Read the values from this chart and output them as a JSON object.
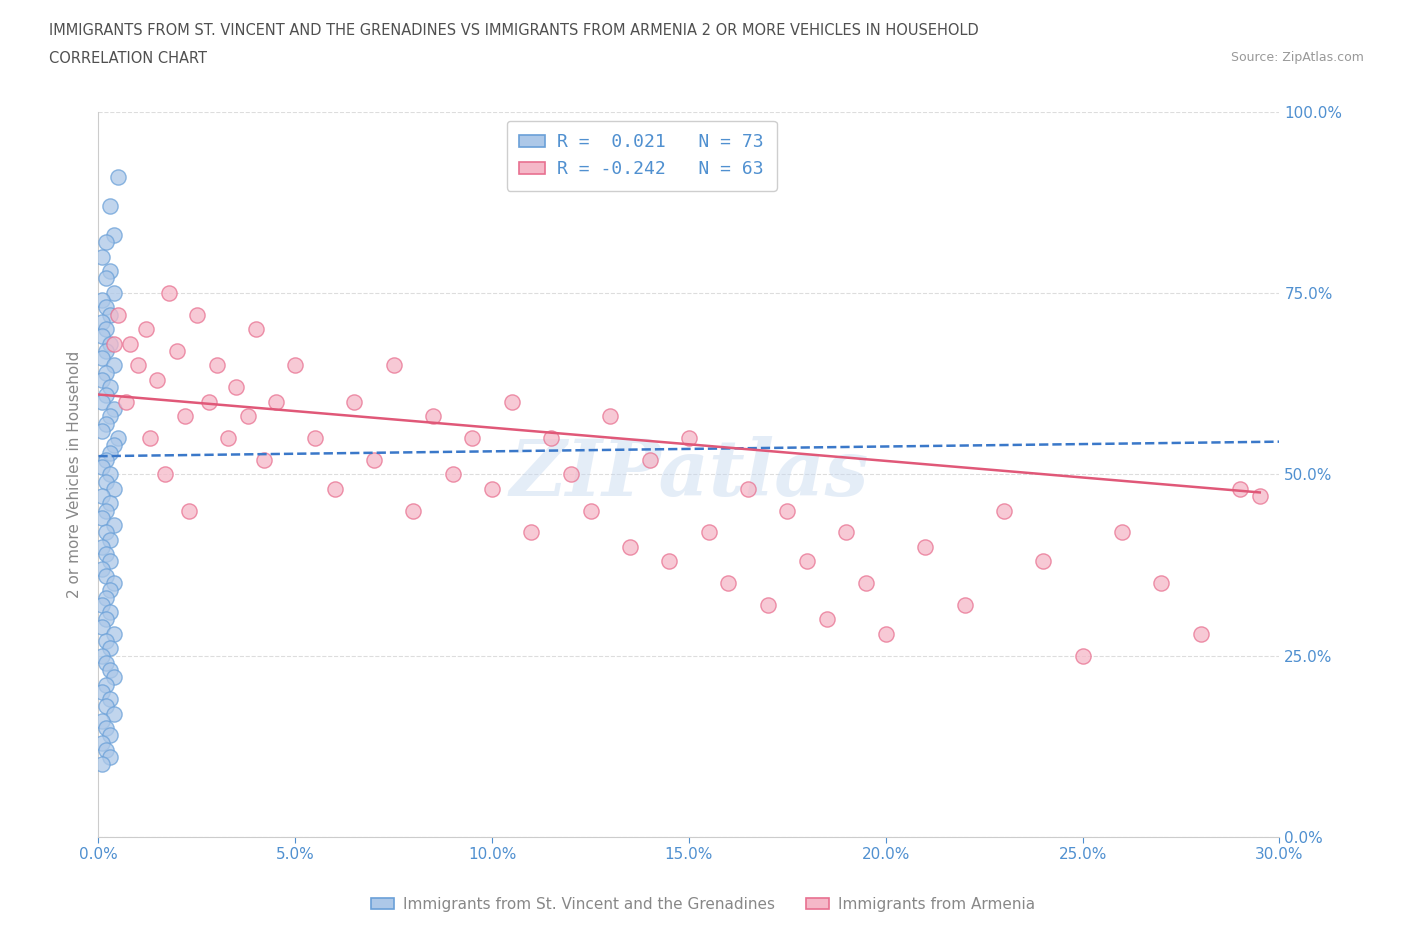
{
  "title_line1": "IMMIGRANTS FROM ST. VINCENT AND THE GRENADINES VS IMMIGRANTS FROM ARMENIA 2 OR MORE VEHICLES IN HOUSEHOLD",
  "title_line2": "CORRELATION CHART",
  "source_text": "Source: ZipAtlas.com",
  "ylabel": "2 or more Vehicles in Household",
  "xlim": [
    0.0,
    0.3
  ],
  "ylim": [
    0.0,
    1.0
  ],
  "xtick_labels": [
    "0.0%",
    "5.0%",
    "10.0%",
    "15.0%",
    "20.0%",
    "25.0%",
    "30.0%"
  ],
  "xtick_values": [
    0.0,
    0.05,
    0.1,
    0.15,
    0.2,
    0.25,
    0.3
  ],
  "ytick_labels": [
    "0.0%",
    "25.0%",
    "50.0%",
    "75.0%",
    "100.0%"
  ],
  "ytick_values": [
    0.0,
    0.25,
    0.5,
    0.75,
    1.0
  ],
  "blue_color": "#adc8e8",
  "pink_color": "#f5b8c8",
  "blue_edge_color": "#6aa0d8",
  "pink_edge_color": "#e87090",
  "blue_line_color": "#3a78c9",
  "pink_line_color": "#e05878",
  "legend_text_1": "R =  0.021   N = 73",
  "legend_text_2": "R = -0.242   N = 63",
  "legend_label_blue": "Immigrants from St. Vincent and the Grenadines",
  "legend_label_pink": "Immigrants from Armenia",
  "watermark": "ZIPatlas",
  "blue_scatter_x": [
    0.005,
    0.003,
    0.004,
    0.002,
    0.001,
    0.003,
    0.002,
    0.004,
    0.001,
    0.002,
    0.003,
    0.001,
    0.002,
    0.001,
    0.003,
    0.002,
    0.001,
    0.004,
    0.002,
    0.001,
    0.003,
    0.002,
    0.001,
    0.004,
    0.003,
    0.002,
    0.001,
    0.005,
    0.004,
    0.003,
    0.002,
    0.001,
    0.003,
    0.002,
    0.004,
    0.001,
    0.003,
    0.002,
    0.001,
    0.004,
    0.002,
    0.003,
    0.001,
    0.002,
    0.003,
    0.001,
    0.002,
    0.004,
    0.003,
    0.002,
    0.001,
    0.003,
    0.002,
    0.001,
    0.004,
    0.002,
    0.003,
    0.001,
    0.002,
    0.003,
    0.004,
    0.002,
    0.001,
    0.003,
    0.002,
    0.004,
    0.001,
    0.002,
    0.003,
    0.001,
    0.002,
    0.003,
    0.001
  ],
  "blue_scatter_y": [
    0.91,
    0.87,
    0.83,
    0.82,
    0.8,
    0.78,
    0.77,
    0.75,
    0.74,
    0.73,
    0.72,
    0.71,
    0.7,
    0.69,
    0.68,
    0.67,
    0.66,
    0.65,
    0.64,
    0.63,
    0.62,
    0.61,
    0.6,
    0.59,
    0.58,
    0.57,
    0.56,
    0.55,
    0.54,
    0.53,
    0.52,
    0.51,
    0.5,
    0.49,
    0.48,
    0.47,
    0.46,
    0.45,
    0.44,
    0.43,
    0.42,
    0.41,
    0.4,
    0.39,
    0.38,
    0.37,
    0.36,
    0.35,
    0.34,
    0.33,
    0.32,
    0.31,
    0.3,
    0.29,
    0.28,
    0.27,
    0.26,
    0.25,
    0.24,
    0.23,
    0.22,
    0.21,
    0.2,
    0.19,
    0.18,
    0.17,
    0.16,
    0.15,
    0.14,
    0.13,
    0.12,
    0.11,
    0.1
  ],
  "pink_scatter_x": [
    0.005,
    0.008,
    0.01,
    0.012,
    0.015,
    0.018,
    0.02,
    0.022,
    0.025,
    0.028,
    0.03,
    0.033,
    0.035,
    0.038,
    0.04,
    0.042,
    0.045,
    0.05,
    0.055,
    0.06,
    0.065,
    0.07,
    0.075,
    0.08,
    0.085,
    0.09,
    0.095,
    0.1,
    0.105,
    0.11,
    0.115,
    0.12,
    0.125,
    0.13,
    0.135,
    0.14,
    0.145,
    0.15,
    0.155,
    0.16,
    0.165,
    0.17,
    0.175,
    0.18,
    0.185,
    0.19,
    0.195,
    0.2,
    0.21,
    0.22,
    0.23,
    0.24,
    0.25,
    0.26,
    0.27,
    0.28,
    0.29,
    0.295,
    0.004,
    0.007,
    0.013,
    0.017,
    0.023
  ],
  "pink_scatter_y": [
    0.72,
    0.68,
    0.65,
    0.7,
    0.63,
    0.75,
    0.67,
    0.58,
    0.72,
    0.6,
    0.65,
    0.55,
    0.62,
    0.58,
    0.7,
    0.52,
    0.6,
    0.65,
    0.55,
    0.48,
    0.6,
    0.52,
    0.65,
    0.45,
    0.58,
    0.5,
    0.55,
    0.48,
    0.6,
    0.42,
    0.55,
    0.5,
    0.45,
    0.58,
    0.4,
    0.52,
    0.38,
    0.55,
    0.42,
    0.35,
    0.48,
    0.32,
    0.45,
    0.38,
    0.3,
    0.42,
    0.35,
    0.28,
    0.4,
    0.32,
    0.45,
    0.38,
    0.25,
    0.42,
    0.35,
    0.28,
    0.48,
    0.47,
    0.68,
    0.6,
    0.55,
    0.5,
    0.45
  ],
  "blue_trend_x": [
    0.0,
    0.3
  ],
  "blue_trend_y": [
    0.525,
    0.545
  ],
  "pink_trend_x": [
    0.0,
    0.295
  ],
  "pink_trend_y": [
    0.61,
    0.475
  ],
  "bg_color": "#ffffff",
  "axis_color": "#cccccc",
  "grid_color": "#dddddd",
  "title_color": "#505050",
  "label_color": "#5090d0",
  "source_color": "#999999"
}
